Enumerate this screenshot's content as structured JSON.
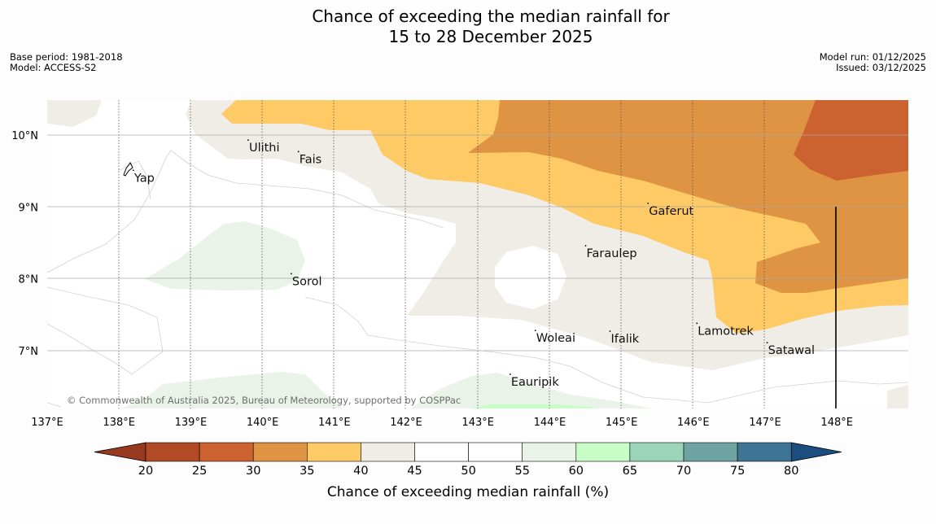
{
  "title": {
    "line1": "Chance of exceeding the median rainfall for",
    "line2": "15 to 28 December 2025"
  },
  "meta_left": {
    "base_period": "Base period: 1981-2018",
    "model": "Model: ACCESS-S2"
  },
  "meta_right": {
    "model_run": "Model run: 01/12/2025",
    "issued": "Issued: 03/12/2025"
  },
  "map": {
    "copyright": "© Commonwealth of Australia 2025, Bureau of Meteorology, supported by COSPPac",
    "lon_ticks": [
      "137°E",
      "138°E",
      "139°E",
      "140°E",
      "141°E",
      "142°E",
      "143°E",
      "144°E",
      "145°E",
      "146°E",
      "147°E",
      "148°E"
    ],
    "lat_ticks": [
      "10°N",
      "9°N",
      "8°N",
      "7°N"
    ],
    "places": [
      {
        "name": "Ulithi",
        "lon": 139.8,
        "lat": 9.93
      },
      {
        "name": "Fais",
        "lon": 140.5,
        "lat": 9.77
      },
      {
        "name": "Yap",
        "lon": 138.2,
        "lat": 9.51
      },
      {
        "name": "Gaferut",
        "lon": 145.37,
        "lat": 9.05
      },
      {
        "name": "Faraulep",
        "lon": 144.5,
        "lat": 8.46
      },
      {
        "name": "Sorol",
        "lon": 140.4,
        "lat": 8.07
      },
      {
        "name": "Lamotrek",
        "lon": 146.05,
        "lat": 7.38
      },
      {
        "name": "Woleai",
        "lon": 143.8,
        "lat": 7.28
      },
      {
        "name": "Ifalik",
        "lon": 144.84,
        "lat": 7.27
      },
      {
        "name": "Satawal",
        "lon": 147.03,
        "lat": 7.11
      },
      {
        "name": "Eauripik",
        "lon": 143.45,
        "lat": 6.67
      }
    ]
  },
  "legend": {
    "title": "Chance of exceeding median rainfall (%)",
    "ticks": [
      "20",
      "25",
      "30",
      "35",
      "40",
      "45",
      "50",
      "55",
      "60",
      "65",
      "70",
      "75",
      "80"
    ],
    "colors": [
      "#b04a27",
      "#cb6230",
      "#df9443",
      "#fdca65",
      "#f0ece6",
      "#ffffff",
      "#ffffff",
      "#e9f3e8",
      "#c8fdc8",
      "#9bd4b9",
      "#6ea3a3",
      "#3e7494"
    ],
    "low_extend_color": "#97391f",
    "high_extend_color": "#1b4d80"
  }
}
